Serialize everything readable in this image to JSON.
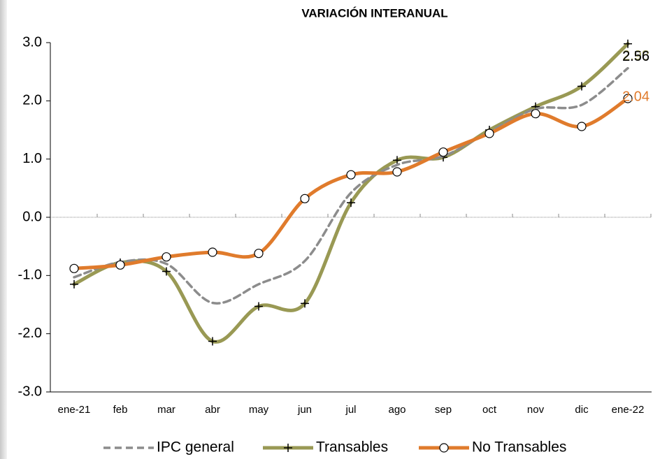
{
  "chart_data": {
    "type": "line",
    "title": "VARIACIÓN INTERANUAL",
    "categories": [
      "ene-21",
      "feb",
      "mar",
      "abr",
      "may",
      "jun",
      "jul",
      "ago",
      "sep",
      "oct",
      "nov",
      "dic",
      "ene-22"
    ],
    "series": [
      {
        "name": "IPC general",
        "color": "#8c8c8c",
        "dash": true,
        "marker": "none",
        "values": [
          -1.03,
          -0.77,
          -0.8,
          -1.47,
          -1.15,
          -0.75,
          0.42,
          0.9,
          1.05,
          1.47,
          1.86,
          1.93,
          2.56
        ]
      },
      {
        "name": "Transables",
        "color": "#999954",
        "dash": false,
        "marker": "plus",
        "values": [
          -1.15,
          -0.78,
          -0.93,
          -2.13,
          -1.53,
          -1.48,
          0.25,
          0.98,
          1.03,
          1.5,
          1.9,
          2.25,
          2.98
        ]
      },
      {
        "name": "No Transables",
        "color": "#e07b2c",
        "dash": false,
        "marker": "circle",
        "values": [
          -0.88,
          -0.82,
          -0.68,
          -0.6,
          -0.62,
          0.32,
          0.73,
          0.78,
          1.12,
          1.44,
          1.78,
          1.56,
          2.04
        ]
      }
    ],
    "ylim": [
      -3,
      3
    ],
    "yticks": [
      {
        "value": -3,
        "label": "-3.0"
      },
      {
        "value": -2,
        "label": "-2.0"
      },
      {
        "value": -1,
        "label": "-1.0"
      },
      {
        "value": 0,
        "label": "0.0"
      },
      {
        "value": 1,
        "label": "1.0"
      },
      {
        "value": 2,
        "label": "2.0"
      },
      {
        "value": 3,
        "label": "3.0"
      }
    ],
    "legend": "bottom"
  }
}
